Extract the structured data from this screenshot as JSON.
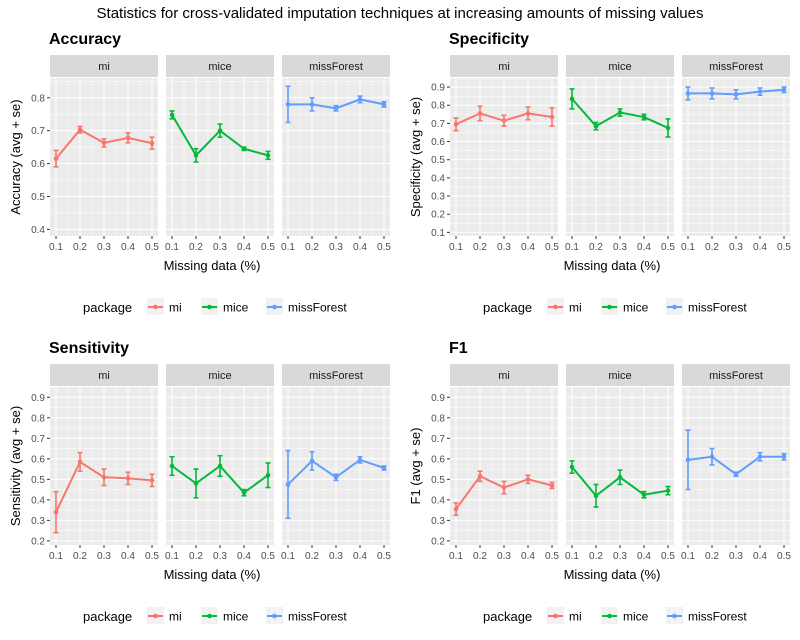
{
  "figure": {
    "title": "Statistics for cross-validated imputation techniques at increasing amounts of missing values"
  },
  "colors": {
    "mi": "#F8766D",
    "mice": "#00BA38",
    "missForest": "#619CFF",
    "panel_bg": "#EBEBEB",
    "strip_bg": "#D9D9D9",
    "grid": "#FFFFFF"
  },
  "legend": {
    "title": "package",
    "items": [
      "mi",
      "mice",
      "missForest"
    ]
  },
  "chart_data": [
    {
      "type": "line",
      "title": "Accuracy",
      "xlabel": "Missing data (%)",
      "ylabel": "Accuracy (avg + se)",
      "ylim": [
        0.38,
        0.86
      ],
      "yticks": [
        "0.4",
        "0.5",
        "0.6",
        "0.7",
        "0.8"
      ],
      "x": [
        "0.1",
        "0.2",
        "0.3",
        "0.4",
        "0.5"
      ],
      "facets": [
        "mi",
        "mice",
        "missForest"
      ],
      "grid": true,
      "legend_position": "bottom",
      "series": [
        {
          "name": "mi",
          "values": [
            0.615,
            0.703,
            0.663,
            0.678,
            0.662
          ],
          "errors": [
            0.025,
            0.01,
            0.012,
            0.015,
            0.018
          ]
        },
        {
          "name": "mice",
          "values": [
            0.748,
            0.625,
            0.7,
            0.645,
            0.625
          ],
          "errors": [
            0.012,
            0.02,
            0.02,
            0.005,
            0.012
          ]
        },
        {
          "name": "missForest",
          "values": [
            0.78,
            0.78,
            0.768,
            0.795,
            0.78
          ],
          "errors": [
            0.055,
            0.02,
            0.008,
            0.01,
            0.008
          ]
        }
      ]
    },
    {
      "type": "line",
      "title": "Specificity",
      "xlabel": "Missing data (%)",
      "ylabel": "Specificity (avg + se)",
      "ylim": [
        0.08,
        0.95
      ],
      "yticks": [
        "0.1",
        "0.2",
        "0.3",
        "0.4",
        "0.5",
        "0.6",
        "0.7",
        "0.8",
        "0.9"
      ],
      "x": [
        "0.1",
        "0.2",
        "0.3",
        "0.4",
        "0.5"
      ],
      "facets": [
        "mi",
        "mice",
        "missForest"
      ],
      "grid": true,
      "legend_position": "bottom",
      "series": [
        {
          "name": "mi",
          "values": [
            0.695,
            0.755,
            0.715,
            0.755,
            0.735
          ],
          "errors": [
            0.035,
            0.04,
            0.03,
            0.035,
            0.05
          ]
        },
        {
          "name": "mice",
          "values": [
            0.835,
            0.685,
            0.76,
            0.735,
            0.675
          ],
          "errors": [
            0.055,
            0.02,
            0.02,
            0.015,
            0.05
          ]
        },
        {
          "name": "missForest",
          "values": [
            0.865,
            0.865,
            0.86,
            0.875,
            0.885
          ],
          "errors": [
            0.035,
            0.03,
            0.025,
            0.02,
            0.015
          ]
        }
      ]
    },
    {
      "type": "line",
      "title": "Sensitivity",
      "xlabel": "Missing data (%)",
      "ylabel": "Sensitivity (avg + se)",
      "ylim": [
        0.18,
        0.95
      ],
      "yticks": [
        "0.2",
        "0.3",
        "0.4",
        "0.5",
        "0.6",
        "0.7",
        "0.8",
        "0.9"
      ],
      "x": [
        "0.1",
        "0.2",
        "0.3",
        "0.4",
        "0.5"
      ],
      "facets": [
        "mi",
        "mice",
        "missForest"
      ],
      "grid": true,
      "legend_position": "bottom",
      "series": [
        {
          "name": "mi",
          "values": [
            0.34,
            0.585,
            0.51,
            0.505,
            0.495
          ],
          "errors": [
            0.1,
            0.045,
            0.04,
            0.03,
            0.03
          ]
        },
        {
          "name": "mice",
          "values": [
            0.565,
            0.48,
            0.565,
            0.435,
            0.52
          ],
          "errors": [
            0.045,
            0.07,
            0.05,
            0.015,
            0.06
          ]
        },
        {
          "name": "missForest",
          "values": [
            0.475,
            0.59,
            0.51,
            0.595,
            0.555
          ],
          "errors": [
            0.165,
            0.045,
            0.015,
            0.015,
            0.01
          ]
        }
      ]
    },
    {
      "type": "line",
      "title": "F1",
      "xlabel": "Missing data (%)",
      "ylabel": "F1 (avg + se)",
      "ylim": [
        0.18,
        0.95
      ],
      "yticks": [
        "0.2",
        "0.3",
        "0.4",
        "0.5",
        "0.6",
        "0.7",
        "0.8",
        "0.9"
      ],
      "x": [
        "0.1",
        "0.2",
        "0.3",
        "0.4",
        "0.5"
      ],
      "facets": [
        "mi",
        "mice",
        "missForest"
      ],
      "grid": true,
      "legend_position": "bottom",
      "series": [
        {
          "name": "mi",
          "values": [
            0.355,
            0.515,
            0.46,
            0.5,
            0.47
          ],
          "errors": [
            0.03,
            0.025,
            0.03,
            0.02,
            0.015
          ]
        },
        {
          "name": "mice",
          "values": [
            0.56,
            0.42,
            0.51,
            0.425,
            0.445
          ],
          "errors": [
            0.03,
            0.055,
            0.035,
            0.015,
            0.02
          ]
        },
        {
          "name": "missForest",
          "values": [
            0.595,
            0.61,
            0.525,
            0.61,
            0.61
          ],
          "errors": [
            0.145,
            0.04,
            0.01,
            0.02,
            0.015
          ]
        }
      ]
    }
  ]
}
